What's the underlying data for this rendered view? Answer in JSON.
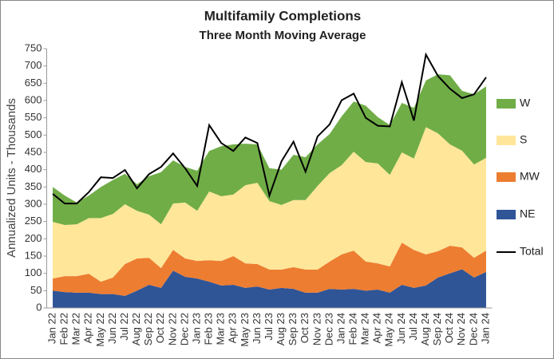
{
  "chart_data": {
    "type": "stacked_area",
    "title": "Multifamily  Completions",
    "subtitle": "Three Month Moving Average",
    "y_axis_label": "Annualized  Units - Thousands",
    "categories": [
      "Jan 22",
      "Feb 22",
      "Mar 22",
      "Apr 22",
      "May 22",
      "Jun 22",
      "Jul 22",
      "Aug 22",
      "Sep 22",
      "Oct 22",
      "Nov 22",
      "Dec 22",
      "Jan 23",
      "Feb 23",
      "Mar 23",
      "Apr 23",
      "May 23",
      "Jun 23",
      "Jul 23",
      "Aug 23",
      "Sep 23",
      "Oct 23",
      "Nov 23",
      "Dec 23",
      "Jan 24",
      "Feb 24",
      "Mar 24",
      "Apr 24",
      "May 24",
      "Jun 24",
      "Jul 24",
      "Aug 24",
      "Sep 24",
      "Oct 24",
      "Nov 24",
      "Dec 24",
      "Jan 24"
    ],
    "series": [
      {
        "name": "NE",
        "color": "#2f5597",
        "values": [
          50,
          46,
          44,
          44,
          40,
          40,
          35,
          50,
          67,
          58,
          108,
          90,
          85,
          76,
          65,
          67,
          58,
          62,
          53,
          58,
          55,
          44,
          44,
          55,
          53,
          55,
          50,
          53,
          44,
          67,
          58,
          65,
          88,
          100,
          112,
          88,
          104
        ]
      },
      {
        "name": "MW",
        "color": "#ed7d31",
        "values": [
          35,
          46,
          48,
          55,
          36,
          48,
          92,
          93,
          78,
          57,
          60,
          53,
          51,
          62,
          71,
          83,
          71,
          65,
          58,
          53,
          63,
          67,
          67,
          79,
          102,
          111,
          84,
          76,
          76,
          122,
          110,
          90,
          76,
          80,
          63,
          57,
          62
        ]
      },
      {
        "name": "S",
        "color": "#ffe699",
        "values": [
          164,
          148,
          150,
          161,
          184,
          184,
          173,
          138,
          125,
          127,
          134,
          162,
          145,
          199,
          187,
          178,
          226,
          235,
          198,
          187,
          194,
          201,
          242,
          256,
          258,
          286,
          288,
          289,
          265,
          261,
          264,
          368,
          341,
          293,
          280,
          270,
          268
        ]
      },
      {
        "name": "W",
        "color": "#70ad47",
        "values": [
          101,
          85,
          63,
          65,
          90,
          98,
          88,
          77,
          111,
          151,
          125,
          103,
          116,
          117,
          145,
          145,
          120,
          111,
          95,
          102,
          131,
          124,
          120,
          113,
          141,
          145,
          163,
          134,
          144,
          143,
          147,
          135,
          171,
          200,
          173,
          203,
          207
        ]
      },
      {
        "name": "Total",
        "type": "line",
        "color": "#000000",
        "values": [
          330,
          302,
          302,
          335,
          378,
          376,
          399,
          346,
          387,
          408,
          447,
          404,
          353,
          529,
          477,
          454,
          493,
          477,
          325,
          424,
          481,
          394,
          496,
          531,
          601,
          620,
          550,
          527,
          525,
          653,
          542,
          733,
          671,
          634,
          607,
          618,
          667
        ]
      }
    ],
    "legend_order": [
      3,
      2,
      1,
      0,
      4
    ],
    "ylim": [
      0,
      750
    ],
    "yticks": [
      0,
      50,
      100,
      150,
      200,
      250,
      300,
      350,
      400,
      450,
      500,
      550,
      600,
      650,
      700,
      750
    ],
    "grid": false
  }
}
